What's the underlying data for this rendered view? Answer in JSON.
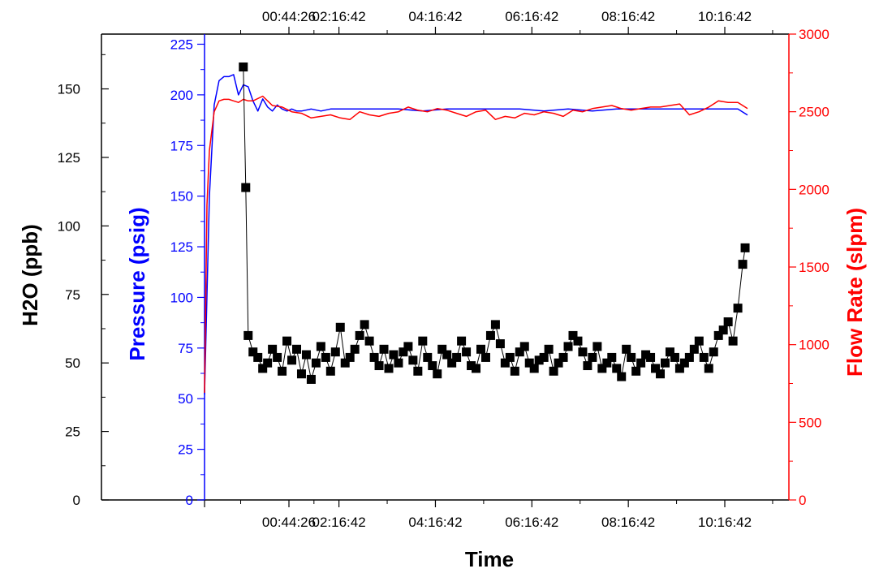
{
  "chart_data": {
    "type": "line",
    "xlabel": "Time",
    "x_tick_labels": [
      "00:44:26",
      "02:16:42",
      "04:16:42",
      "06:16:42",
      "08:16:42",
      "10:16:42"
    ],
    "x_tick_positions_hours": [
      1.741,
      2.778,
      4.778,
      6.778,
      8.778,
      10.778
    ],
    "xlim_hours": [
      0,
      11.5
    ],
    "grid": false,
    "legend": "none",
    "axes": {
      "h2o": {
        "label": "H2O (ppb)",
        "ylim": [
          0,
          170
        ],
        "ticks": [
          0,
          25,
          50,
          75,
          100,
          125,
          150
        ],
        "color": "#000000",
        "side": "left-outer"
      },
      "pressure": {
        "label": "Pressure (psig)",
        "ylim": [
          0,
          230
        ],
        "ticks": [
          0,
          25,
          50,
          75,
          100,
          125,
          150,
          175,
          200,
          225
        ],
        "color": "#0000ff",
        "side": "left-inner"
      },
      "flow": {
        "label": "Flow Rate (slpm)",
        "ylim": [
          0,
          3000
        ],
        "ticks": [
          0,
          500,
          1000,
          1500,
          2000,
          2500,
          3000
        ],
        "color": "#ff0000",
        "side": "right"
      }
    },
    "series": [
      {
        "name": "Pressure",
        "axis": "pressure",
        "color": "#0000ff",
        "style": "line",
        "x": [
          0,
          0.1,
          0.2,
          0.3,
          0.4,
          0.5,
          0.6,
          0.7,
          0.8,
          0.9,
          1.0,
          1.1,
          1.2,
          1.3,
          1.4,
          1.5,
          1.6,
          1.7,
          1.8,
          1.9,
          2.0,
          2.2,
          2.4,
          2.6,
          2.8,
          3.0,
          3.5,
          4.0,
          4.5,
          5.0,
          5.5,
          6.0,
          6.5,
          7.0,
          7.5,
          8.0,
          8.5,
          9.0,
          9.5,
          10.0,
          10.5,
          11.0,
          11.2
        ],
        "y": [
          52,
          150,
          195,
          207,
          209,
          209,
          210,
          200,
          205,
          204,
          197,
          192,
          198,
          194,
          192,
          195,
          193,
          192,
          193,
          192,
          192,
          193,
          192,
          193,
          193,
          193,
          193,
          193,
          192,
          193,
          193,
          193,
          193,
          192,
          193,
          192,
          193,
          193,
          193,
          193,
          193,
          193,
          190
        ]
      },
      {
        "name": "Flow Rate",
        "axis": "flow",
        "color": "#ff0000",
        "style": "line",
        "x": [
          0,
          0.05,
          0.1,
          0.2,
          0.3,
          0.4,
          0.5,
          0.6,
          0.7,
          0.8,
          0.9,
          1.0,
          1.2,
          1.4,
          1.6,
          1.8,
          2.0,
          2.2,
          2.4,
          2.6,
          2.8,
          3.0,
          3.2,
          3.4,
          3.6,
          3.8,
          4.0,
          4.2,
          4.4,
          4.6,
          4.8,
          5.0,
          5.2,
          5.4,
          5.6,
          5.8,
          6.0,
          6.2,
          6.4,
          6.6,
          6.8,
          7.0,
          7.2,
          7.4,
          7.6,
          7.8,
          8.0,
          8.2,
          8.4,
          8.6,
          8.8,
          9.0,
          9.2,
          9.4,
          9.6,
          9.8,
          10.0,
          10.2,
          10.4,
          10.6,
          10.8,
          11.0,
          11.2
        ],
        "y": [
          690,
          1900,
          2250,
          2500,
          2570,
          2580,
          2580,
          2570,
          2560,
          2580,
          2570,
          2570,
          2600,
          2540,
          2530,
          2500,
          2490,
          2460,
          2470,
          2480,
          2460,
          2450,
          2500,
          2480,
          2470,
          2490,
          2500,
          2530,
          2510,
          2500,
          2520,
          2510,
          2490,
          2470,
          2500,
          2510,
          2450,
          2470,
          2460,
          2490,
          2480,
          2500,
          2490,
          2470,
          2510,
          2500,
          2520,
          2530,
          2540,
          2520,
          2510,
          2520,
          2530,
          2530,
          2540,
          2550,
          2480,
          2500,
          2530,
          2570,
          2560,
          2560,
          2520
        ]
      },
      {
        "name": "H2O",
        "axis": "h2o",
        "color": "#000000",
        "style": "line+square",
        "x": [
          0.8,
          0.85,
          0.9,
          1.0,
          1.1,
          1.2,
          1.3,
          1.4,
          1.5,
          1.6,
          1.7,
          1.8,
          1.9,
          2.0,
          2.1,
          2.2,
          2.3,
          2.4,
          2.5,
          2.6,
          2.7,
          2.8,
          2.9,
          3.0,
          3.1,
          3.2,
          3.3,
          3.4,
          3.5,
          3.6,
          3.7,
          3.8,
          3.9,
          4.0,
          4.1,
          4.2,
          4.3,
          4.4,
          4.5,
          4.6,
          4.7,
          4.8,
          4.9,
          5.0,
          5.1,
          5.2,
          5.3,
          5.4,
          5.5,
          5.6,
          5.7,
          5.8,
          5.9,
          6.0,
          6.1,
          6.2,
          6.3,
          6.4,
          6.5,
          6.6,
          6.7,
          6.8,
          6.9,
          7.0,
          7.1,
          7.2,
          7.3,
          7.4,
          7.5,
          7.6,
          7.7,
          7.8,
          7.9,
          8.0,
          8.1,
          8.2,
          8.3,
          8.4,
          8.5,
          8.6,
          8.7,
          8.8,
          8.9,
          9.0,
          9.1,
          9.2,
          9.3,
          9.4,
          9.5,
          9.6,
          9.7,
          9.8,
          9.9,
          10.0,
          10.1,
          10.2,
          10.3,
          10.4,
          10.5,
          10.6,
          10.7,
          10.8,
          10.9,
          11.0,
          11.1,
          11.15
        ],
        "y": [
          158,
          114,
          60,
          54,
          52,
          48,
          50,
          55,
          52,
          47,
          58,
          51,
          55,
          46,
          53,
          44,
          50,
          56,
          52,
          47,
          54,
          63,
          50,
          52,
          55,
          60,
          64,
          58,
          52,
          49,
          55,
          48,
          53,
          50,
          54,
          56,
          51,
          47,
          58,
          52,
          49,
          46,
          55,
          53,
          50,
          52,
          58,
          54,
          49,
          48,
          55,
          52,
          60,
          64,
          57,
          50,
          52,
          47,
          54,
          56,
          50,
          48,
          51,
          52,
          55,
          47,
          50,
          52,
          56,
          60,
          58,
          54,
          49,
          52,
          56,
          48,
          50,
          52,
          48,
          45,
          55,
          52,
          47,
          50,
          53,
          52,
          48,
          46,
          50,
          54,
          52,
          48,
          50,
          52,
          55,
          58,
          52,
          48,
          54,
          60,
          62,
          65,
          58,
          70,
          86,
          92
        ]
      }
    ]
  }
}
